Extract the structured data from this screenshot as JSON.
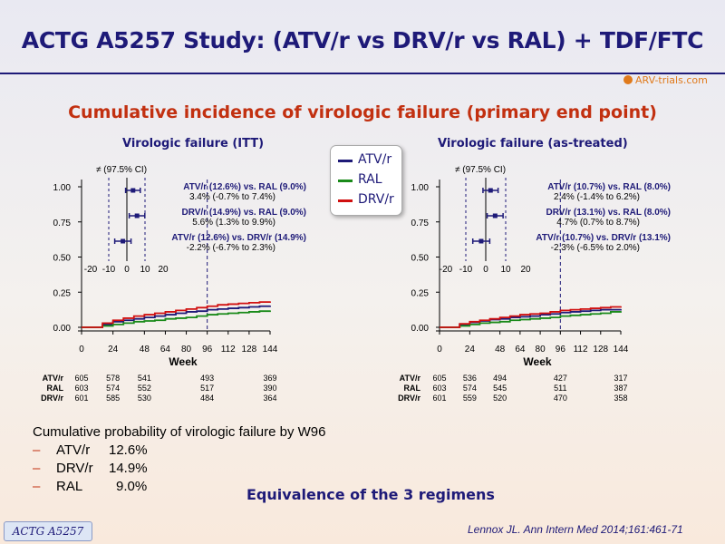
{
  "title": "ACTG A5257 Study: (ATV/r vs DRV/r vs RAL) + TDF/FTC",
  "logo_text": "ARV-trials.com",
  "subtitle": "Cumulative incidence of virologic failure (primary end point)",
  "legend": {
    "items": [
      {
        "label": "ATV/r",
        "color": "#1e1a78"
      },
      {
        "label": "RAL",
        "color": "#1a8a1a"
      },
      {
        "label": "DRV/r",
        "color": "#d01010"
      }
    ]
  },
  "chart_data": [
    {
      "type": "line",
      "title": "Virologic  failure (ITT)",
      "xlabel": "Week",
      "x_ticks": [
        0,
        24,
        48,
        64,
        80,
        96,
        112,
        128,
        144
      ],
      "y_ticks": [
        "1.00",
        "0.75",
        "0.50",
        "0.25",
        "0.00"
      ],
      "ylim": [
        0,
        1
      ],
      "xlim": [
        0,
        144
      ],
      "reference_week": 96,
      "series": [
        {
          "name": "ATV/r",
          "color": "#1e1a78",
          "x": [
            0,
            8,
            16,
            24,
            32,
            40,
            48,
            56,
            64,
            72,
            80,
            88,
            96,
            104,
            112,
            120,
            128,
            136,
            144
          ],
          "y": [
            0,
            0,
            0.02,
            0.04,
            0.05,
            0.06,
            0.07,
            0.08,
            0.09,
            0.1,
            0.11,
            0.115,
            0.125,
            0.13,
            0.135,
            0.14,
            0.145,
            0.15,
            0.155
          ]
        },
        {
          "name": "RAL",
          "color": "#1a8a1a",
          "x": [
            0,
            8,
            16,
            24,
            32,
            40,
            48,
            56,
            64,
            72,
            80,
            88,
            96,
            104,
            112,
            120,
            128,
            136,
            144
          ],
          "y": [
            0,
            0,
            0.01,
            0.02,
            0.03,
            0.04,
            0.045,
            0.05,
            0.06,
            0.065,
            0.07,
            0.08,
            0.09,
            0.095,
            0.1,
            0.105,
            0.11,
            0.115,
            0.12
          ]
        },
        {
          "name": "DRV/r",
          "color": "#d01010",
          "x": [
            0,
            8,
            16,
            24,
            32,
            40,
            48,
            56,
            64,
            72,
            80,
            88,
            96,
            104,
            112,
            120,
            128,
            136,
            144
          ],
          "y": [
            0,
            0,
            0.03,
            0.05,
            0.065,
            0.08,
            0.09,
            0.1,
            0.11,
            0.12,
            0.13,
            0.14,
            0.15,
            0.16,
            0.165,
            0.17,
            0.175,
            0.18,
            0.185
          ]
        }
      ],
      "forest": {
        "header": "≠ (97.5% CI)",
        "ticks": [
          -20,
          -10,
          0,
          10,
          20
        ],
        "bounds": [
          -10,
          10
        ],
        "rows": [
          {
            "label": "ATV/r (12.6%)  vs.  RAL (9.0%)",
            "estimate_text": "3.4% (-0.7% to 7.4%)",
            "estimate": 3.4,
            "lo": -0.7,
            "hi": 7.4
          },
          {
            "label": "DRV/r (14.9%)  vs.  RAL (9.0%)",
            "estimate_text": "5.6% (1.3% to 9.9%)",
            "estimate": 5.6,
            "lo": 1.3,
            "hi": 9.9
          },
          {
            "label": "ATV/r (12.6%)  vs.  DRV/r (14.9%)",
            "estimate_text": "-2.2% (-6.7% to 2.3%)",
            "estimate": -2.2,
            "lo": -6.7,
            "hi": 2.3
          }
        ]
      },
      "at_risk": {
        "weeks": [
          0,
          24,
          48,
          96,
          144
        ],
        "rows": [
          {
            "label": "ATV/r",
            "values": [
              "605",
              "578",
              "541",
              "493",
              "369"
            ]
          },
          {
            "label": "RAL",
            "values": [
              "603",
              "574",
              "552",
              "517",
              "390"
            ]
          },
          {
            "label": "DRV/r",
            "values": [
              "601",
              "585",
              "530",
              "484",
              "364"
            ]
          }
        ]
      }
    },
    {
      "type": "line",
      "title": "Virologic  failure (as-treated)",
      "xlabel": "Week",
      "x_ticks": [
        0,
        24,
        48,
        64,
        80,
        96,
        112,
        128,
        144
      ],
      "y_ticks": [
        "1.00",
        "0.75",
        "0.50",
        "0.25",
        "0.00"
      ],
      "ylim": [
        0,
        1
      ],
      "xlim": [
        0,
        144
      ],
      "reference_week": 96,
      "series": [
        {
          "name": "ATV/r",
          "color": "#1e1a78",
          "x": [
            0,
            8,
            16,
            24,
            32,
            40,
            48,
            56,
            64,
            72,
            80,
            88,
            96,
            104,
            112,
            120,
            128,
            136,
            144
          ],
          "y": [
            0,
            0,
            0.02,
            0.035,
            0.045,
            0.055,
            0.06,
            0.07,
            0.075,
            0.08,
            0.09,
            0.095,
            0.105,
            0.11,
            0.115,
            0.12,
            0.125,
            0.125,
            0.13
          ]
        },
        {
          "name": "RAL",
          "color": "#1a8a1a",
          "x": [
            0,
            8,
            16,
            24,
            32,
            40,
            48,
            56,
            64,
            72,
            80,
            88,
            96,
            104,
            112,
            120,
            128,
            136,
            144
          ],
          "y": [
            0,
            0,
            0.01,
            0.02,
            0.03,
            0.035,
            0.04,
            0.05,
            0.055,
            0.06,
            0.065,
            0.07,
            0.08,
            0.085,
            0.09,
            0.095,
            0.1,
            0.11,
            0.115
          ]
        },
        {
          "name": "DRV/r",
          "color": "#d01010",
          "x": [
            0,
            8,
            16,
            24,
            32,
            40,
            48,
            56,
            64,
            72,
            80,
            88,
            96,
            104,
            112,
            120,
            128,
            136,
            144
          ],
          "y": [
            0,
            0,
            0.025,
            0.04,
            0.05,
            0.06,
            0.07,
            0.08,
            0.09,
            0.095,
            0.1,
            0.11,
            0.12,
            0.125,
            0.13,
            0.135,
            0.14,
            0.145,
            0.15
          ]
        }
      ],
      "forest": {
        "header": "≠ (97.5% CI)",
        "ticks": [
          -20,
          -10,
          0,
          10,
          20
        ],
        "bounds": [
          -10,
          10
        ],
        "rows": [
          {
            "label": "ATV/r (10.7%)  vs.  RAL (8.0%)",
            "estimate_text": "2.4% (-1.4% to 6.2%)",
            "estimate": 2.4,
            "lo": -1.4,
            "hi": 6.2
          },
          {
            "label": "DRV/r (13.1%)  vs.  RAL (8.0%)",
            "estimate_text": "4.7% (0.7% to 8.7%)",
            "estimate": 4.7,
            "lo": 0.7,
            "hi": 8.7
          },
          {
            "label": "ATV/r (10.7%)  vs.  DRV/r (13.1%)",
            "estimate_text": "-2.3% (-6.5% to 2.0%)",
            "estimate": -2.3,
            "lo": -6.5,
            "hi": 2.0
          }
        ]
      },
      "at_risk": {
        "weeks": [
          0,
          24,
          48,
          96,
          144
        ],
        "rows": [
          {
            "label": "ATV/r",
            "values": [
              "605",
              "536",
              "494",
              "427",
              "317"
            ]
          },
          {
            "label": "RAL",
            "values": [
              "603",
              "574",
              "545",
              "511",
              "387"
            ]
          },
          {
            "label": "DRV/r",
            "values": [
              "601",
              "559",
              "520",
              "470",
              "358"
            ]
          }
        ]
      }
    }
  ],
  "summary": {
    "heading": "Cumulative probability of virologic failure by W96",
    "items": [
      {
        "dash": "–",
        "label": "ATV/r",
        "value": "12.6%"
      },
      {
        "dash": "–",
        "label": "DRV/r",
        "value": "14.9%"
      },
      {
        "dash": "–",
        "label": "RAL",
        "value": "9.0%"
      }
    ]
  },
  "conclusion": "Equivalence of the 3 regimens",
  "study_tag": "ACTG A5257",
  "citation": "Lennox JL. Ann Intern Med 2014;161:461-71"
}
